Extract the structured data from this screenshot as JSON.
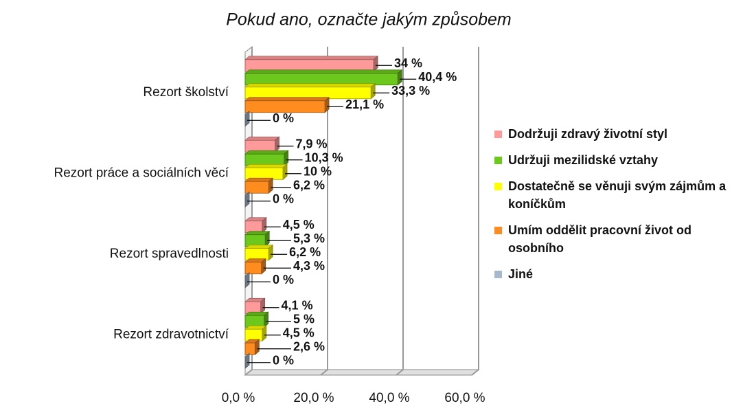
{
  "chart_data": {
    "type": "bar",
    "orientation": "horizontal",
    "three_d": true,
    "title": "Pokud ano, označte jakým způsobem",
    "categories": [
      "Rezort školství",
      "Rezort práce a sociálních věcí",
      "Rezort spravedlnosti",
      "Rezort zdravotnictví"
    ],
    "series": [
      {
        "name": "Dodržuji zdravý životní styl",
        "color": "#ff9a9a",
        "values": [
          34,
          7.9,
          4.5,
          4.1
        ],
        "value_labels": [
          "34 %",
          "7,9 %",
          "4,5 %",
          "4,1 %"
        ]
      },
      {
        "name": "Udržuji mezilidské vztahy",
        "color": "#6cc81c",
        "values": [
          40.4,
          10.3,
          5.3,
          5
        ],
        "value_labels": [
          "40,4 %",
          "10,3 %",
          "5,3 %",
          "5 %"
        ]
      },
      {
        "name": "Dostatečně se věnuji svým zájmům a koníčkům",
        "color": "#ffff00",
        "values": [
          33.3,
          10,
          6.2,
          4.5
        ],
        "value_labels": [
          "33,3 %",
          "10 %",
          "6,2 %",
          "4,5 %"
        ]
      },
      {
        "name": "Umím oddělit pracovní život od osobního",
        "color": "#ff8c1e",
        "values": [
          21.1,
          6.2,
          4.3,
          2.6
        ],
        "value_labels": [
          "21,1 %",
          "6,2 %",
          "4,3 %",
          "2,6 %"
        ]
      },
      {
        "name": "Jiné",
        "color": "#a8b8cc",
        "values": [
          0,
          0,
          0,
          0
        ],
        "value_labels": [
          "0 %",
          "0 %",
          "0 %",
          "0 %"
        ]
      }
    ],
    "xlim": [
      0,
      60
    ],
    "xticks": [
      {
        "value": 0,
        "label": "0,0 %"
      },
      {
        "value": 20,
        "label": "20,0 %"
      },
      {
        "value": 40,
        "label": "40,0 %"
      },
      {
        "value": 60,
        "label": "60,0 %"
      }
    ],
    "grid": true,
    "legend": "right"
  }
}
